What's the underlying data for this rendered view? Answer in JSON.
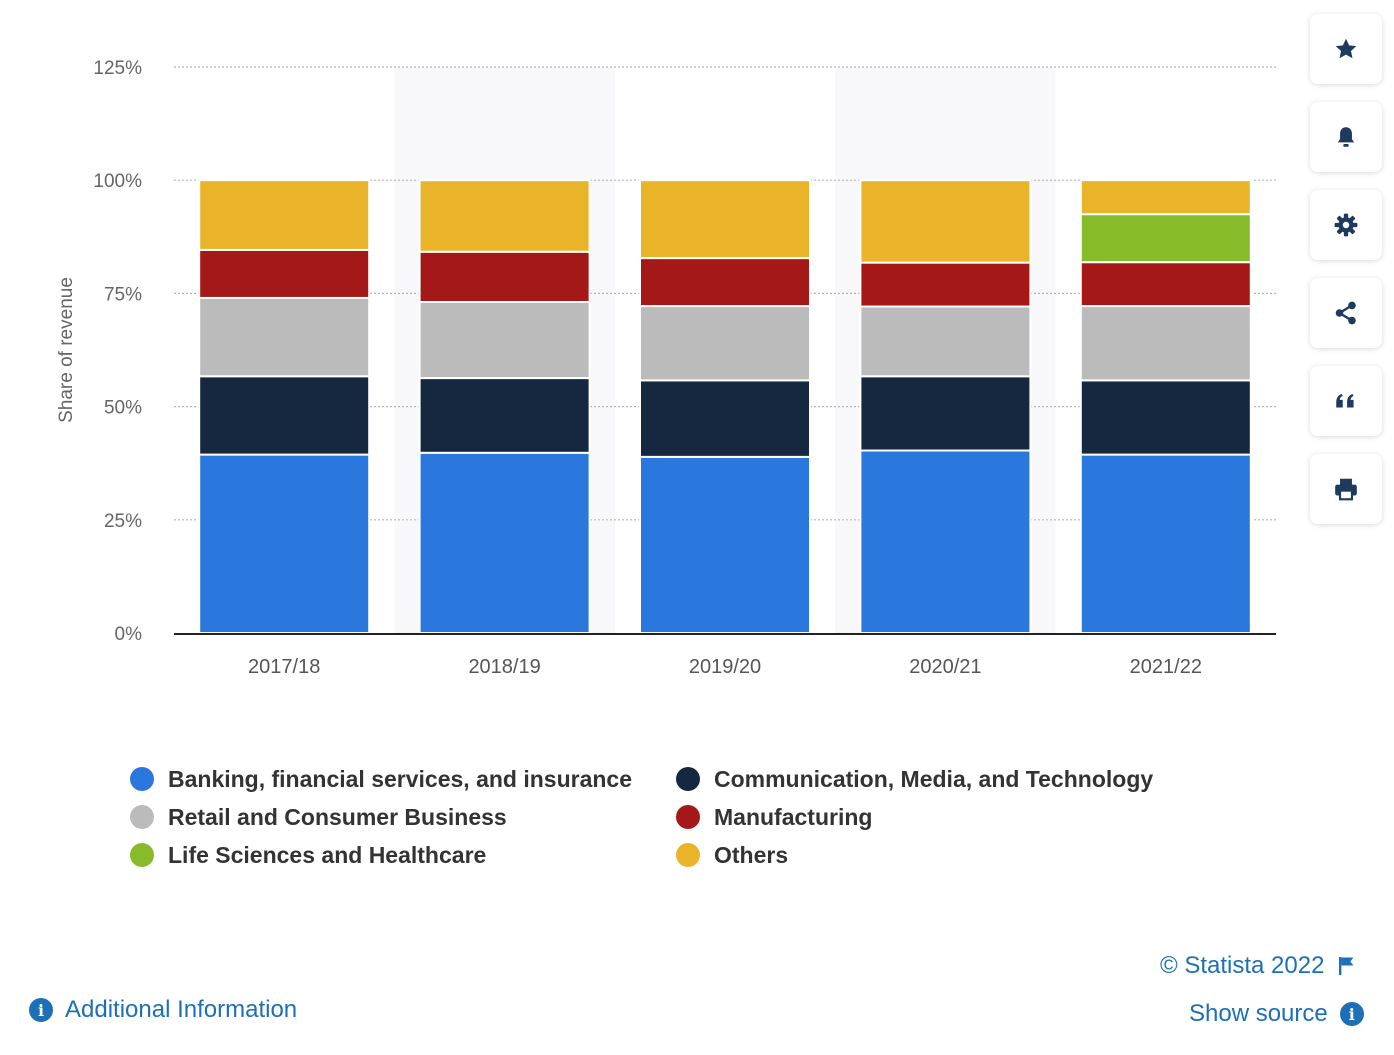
{
  "chart_data": {
    "type": "bar",
    "stacked": true,
    "categories": [
      "2017/18",
      "2018/19",
      "2019/20",
      "2020/21",
      "2021/22"
    ],
    "ylabel": "Share of revenue",
    "ylim": [
      0,
      125
    ],
    "yticks": [
      "0%",
      "25%",
      "50%",
      "75%",
      "100%",
      "125%"
    ],
    "grid": true,
    "legend_position": "bottom",
    "series": [
      {
        "name": "Banking, financial services, and insurance",
        "color": "#2a77dd",
        "values": [
          39.4,
          39.8,
          38.9,
          40.3,
          39.4
        ]
      },
      {
        "name": "Communication, Media, and Technology",
        "color": "#152840",
        "values": [
          17.3,
          16.5,
          16.9,
          16.4,
          16.4
        ]
      },
      {
        "name": "Retail and Consumer Business",
        "color": "#bbbbbb",
        "values": [
          17.3,
          16.8,
          16.4,
          15.4,
          16.4
        ]
      },
      {
        "name": "Manufacturing",
        "color": "#a51818",
        "values": [
          10.6,
          11.1,
          10.6,
          9.7,
          9.7
        ]
      },
      {
        "name": "Life Sciences and Healthcare",
        "color": "#88bb2a",
        "values": [
          0,
          0,
          0,
          0,
          10.6
        ]
      },
      {
        "name": "Others",
        "color": "#eab42a",
        "values": [
          15.4,
          15.8,
          17.2,
          18.2,
          7.5
        ]
      }
    ]
  },
  "toolbar": {
    "buttons": [
      "star-icon",
      "bell-icon",
      "gear-icon",
      "share-icon",
      "quote-icon",
      "print-icon"
    ]
  },
  "footer": {
    "copyright": "© Statista 2022",
    "show_source": "Show source",
    "additional_info": "Additional Information"
  }
}
